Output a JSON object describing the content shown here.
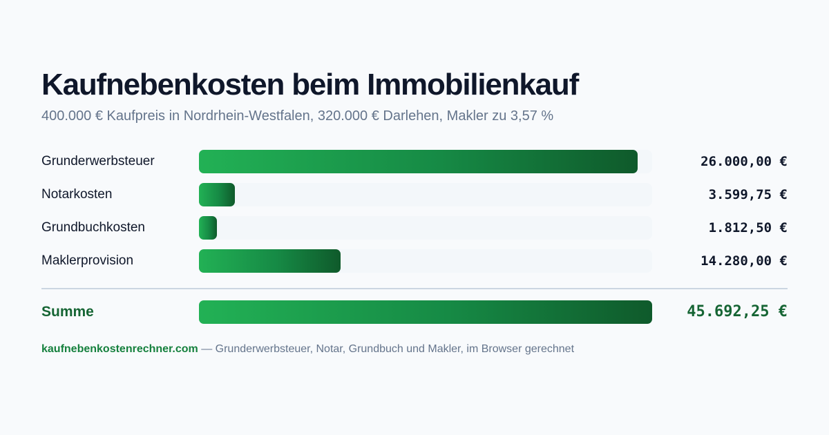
{
  "header": {
    "title": "Kaufnebenkosten beim Immobilienkauf",
    "subtitle": "400.000 € Kaufpreis in Nordrhein-Westfalen, 320.000 € Darlehen, Makler zu 3,57 %"
  },
  "chart_data": {
    "type": "bar",
    "orientation": "horizontal",
    "categories": [
      "Grunderwerbsteuer",
      "Notarkosten",
      "Grundbuchkosten",
      "Maklerprovision"
    ],
    "values": [
      26000.0,
      3599.75,
      1812.5,
      14280.0
    ],
    "value_labels": [
      "26.000,00 €",
      "3.599,75 €",
      "1.812,50 €",
      "14.280,00 €"
    ],
    "total": {
      "label": "Summe",
      "value": 45692.25,
      "value_label": "45.692,25 €"
    },
    "colors": {
      "bar_start": "#22b155",
      "bar_end": "#0f5a2b",
      "track": "#f1f5f9",
      "total_text": "#166534"
    }
  },
  "footer": {
    "site": "kaufnebenkostenrechner.com",
    "text": " — Grunderwerbsteuer, Notar, Grundbuch und Makler, im Browser gerechnet"
  }
}
